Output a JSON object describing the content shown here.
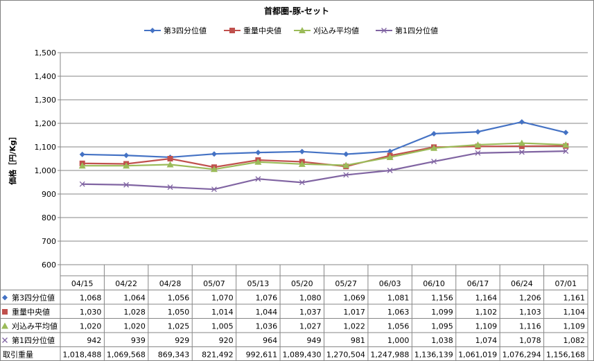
{
  "chart_data": {
    "type": "line",
    "title": "首都圏-豚-セット",
    "ylabel": "価格［円/Kg］",
    "ylim": [
      600,
      1500
    ],
    "yticks": [
      600,
      700,
      800,
      900,
      1000,
      1100,
      1200,
      1300,
      1400,
      1500
    ],
    "ytick_labels": [
      "600",
      "700",
      "800",
      "900",
      "1,000",
      "1,100",
      "1,200",
      "1,300",
      "1,400",
      "1,500"
    ],
    "grid": true,
    "legend_position": "top",
    "categories": [
      "04/15",
      "04/22",
      "04/28",
      "05/07",
      "05/13",
      "05/20",
      "05/27",
      "06/03",
      "06/10",
      "06/17",
      "06/24",
      "07/01"
    ],
    "series": [
      {
        "name": "第3四分位値",
        "color": "#4472C4",
        "marker": "diamond",
        "values": [
          1068,
          1064,
          1056,
          1070,
          1076,
          1080,
          1069,
          1081,
          1156,
          1164,
          1206,
          1161
        ],
        "labels": [
          "1,068",
          "1,064",
          "1,056",
          "1,070",
          "1,076",
          "1,080",
          "1,069",
          "1,081",
          "1,156",
          "1,164",
          "1,206",
          "1,161"
        ]
      },
      {
        "name": "重量中央値",
        "color": "#C0504D",
        "marker": "square",
        "values": [
          1030,
          1028,
          1050,
          1014,
          1044,
          1037,
          1017,
          1063,
          1099,
          1102,
          1103,
          1104
        ],
        "labels": [
          "1,030",
          "1,028",
          "1,050",
          "1,014",
          "1,044",
          "1,037",
          "1,017",
          "1,063",
          "1,099",
          "1,102",
          "1,103",
          "1,104"
        ]
      },
      {
        "name": "刈込み平均値",
        "color": "#9BBB59",
        "marker": "triangle",
        "values": [
          1020,
          1020,
          1025,
          1005,
          1036,
          1027,
          1022,
          1056,
          1095,
          1109,
          1116,
          1109
        ],
        "labels": [
          "1,020",
          "1,020",
          "1,025",
          "1,005",
          "1,036",
          "1,027",
          "1,022",
          "1,056",
          "1,095",
          "1,109",
          "1,116",
          "1,109"
        ]
      },
      {
        "name": "第1四分位値",
        "color": "#8064A2",
        "marker": "x",
        "values": [
          942,
          939,
          929,
          920,
          964,
          949,
          981,
          1000,
          1038,
          1074,
          1078,
          1082
        ],
        "labels": [
          "942",
          "939",
          "929",
          "920",
          "964",
          "949",
          "981",
          "1,000",
          "1,038",
          "1,074",
          "1,078",
          "1,082"
        ]
      }
    ],
    "extra_rows": [
      {
        "name": "取引重量",
        "values": [
          1018488,
          1069568,
          869343,
          821492,
          992611,
          1089430,
          1270504,
          1247988,
          1136139,
          1061019,
          1076294,
          1156168
        ],
        "labels": [
          "1,018,488",
          "1,069,568",
          "869,343",
          "821,492",
          "992,611",
          "1,089,430",
          "1,270,504",
          "1,247,988",
          "1,136,139",
          "1,061,019",
          "1,076,294",
          "1,156,168"
        ]
      }
    ]
  }
}
